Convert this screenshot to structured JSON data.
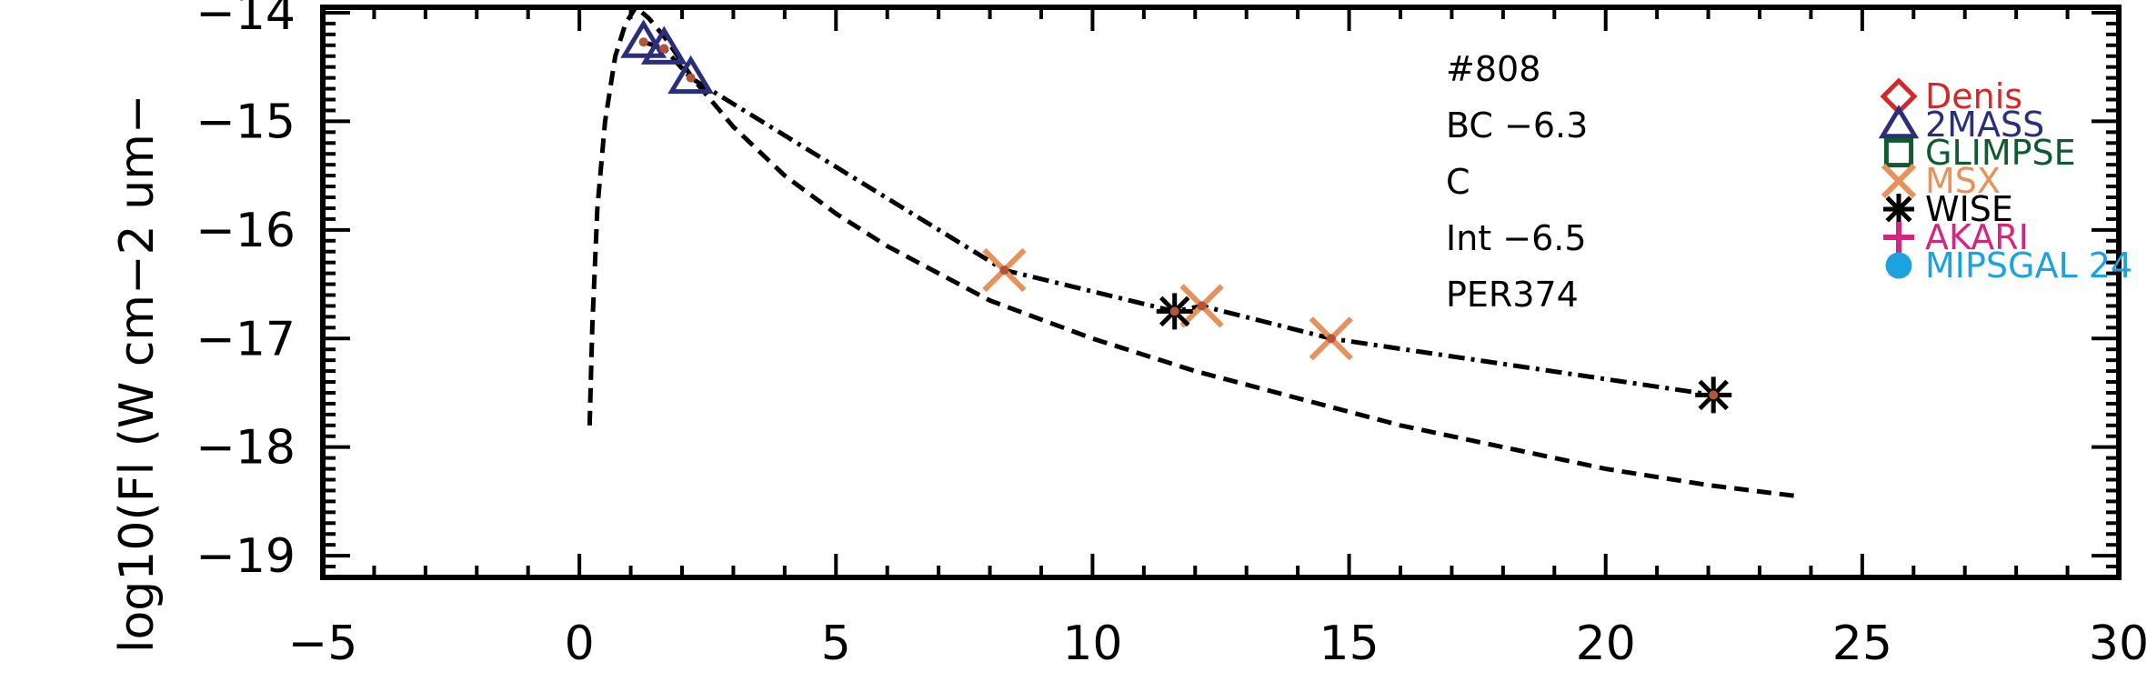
{
  "chart_data": {
    "type": "scatter",
    "ylabel": "log10(Fl (W cm−2 um−",
    "xlim": [
      -5,
      30
    ],
    "ylim": [
      -19.2,
      -13.95
    ],
    "x_ticks": [
      "−5",
      "0",
      "5",
      "10",
      "15",
      "20",
      "25",
      "30"
    ],
    "y_ticks": [
      "−14",
      "−15",
      "−16",
      "−17",
      "−18",
      "−19"
    ],
    "annotations": [
      "#808",
      "BC −6.3",
      "C",
      "Int −6.5",
      "PER374"
    ],
    "legend": {
      "placement": "right",
      "entries": [
        {
          "name": "Denis",
          "marker": "diamond",
          "color": "#d62728"
        },
        {
          "name": "2MASS",
          "marker": "triangle",
          "color": "#2b2f7a"
        },
        {
          "name": "GLIMPSE",
          "marker": "square",
          "color": "#0f5a2e"
        },
        {
          "name": "MSX",
          "marker": "x",
          "color": "#e8915a"
        },
        {
          "name": "WISE",
          "marker": "asterisk",
          "color": "#000000"
        },
        {
          "name": "AKARI",
          "marker": "plus",
          "color": "#d4267e"
        },
        {
          "name": "MIPSGAL 24",
          "marker": "circle",
          "color": "#1aa3dc"
        }
      ]
    },
    "series": [
      {
        "name": "2MASS",
        "marker": "triangle",
        "color": "#2b2f7a",
        "x": [
          1.25,
          1.65,
          2.17
        ],
        "y": [
          -14.27,
          -14.33,
          -14.6
        ]
      },
      {
        "name": "MSX",
        "marker": "x",
        "color": "#e8915a",
        "x": [
          8.28,
          12.13,
          14.65
        ],
        "y": [
          -16.37,
          -16.7,
          -17.0
        ]
      },
      {
        "name": "WISE",
        "marker": "asterisk",
        "color": "#000000",
        "x": [
          11.6,
          22.1
        ],
        "y": [
          -16.75,
          -17.52
        ]
      },
      {
        "line": "dash-dot",
        "color": "#000000",
        "x": [
          1.25,
          1.65,
          2.17,
          8.28,
          11.6,
          12.13,
          14.65,
          22.1
        ],
        "y": [
          -14.27,
          -14.33,
          -14.6,
          -16.37,
          -16.75,
          -16.7,
          -17.0,
          -17.52
        ]
      },
      {
        "line": "dashed",
        "color": "#000000",
        "x": [
          0.2,
          0.25,
          0.35,
          0.5,
          0.7,
          0.9,
          1.1,
          1.35,
          1.7,
          2.2,
          3.0,
          4.0,
          5.0,
          6.0,
          8.0,
          10.0,
          12.0,
          14.0,
          16.0,
          18.0,
          20.0,
          22.0,
          23.7
        ],
        "y": [
          -17.8,
          -16.9,
          -15.8,
          -15.0,
          -14.4,
          -14.1,
          -13.95,
          -14.05,
          -14.25,
          -14.6,
          -15.05,
          -15.5,
          -15.85,
          -16.15,
          -16.65,
          -17.0,
          -17.3,
          -17.55,
          -17.8,
          -18.0,
          -18.2,
          -18.35,
          -18.45
        ]
      }
    ]
  }
}
